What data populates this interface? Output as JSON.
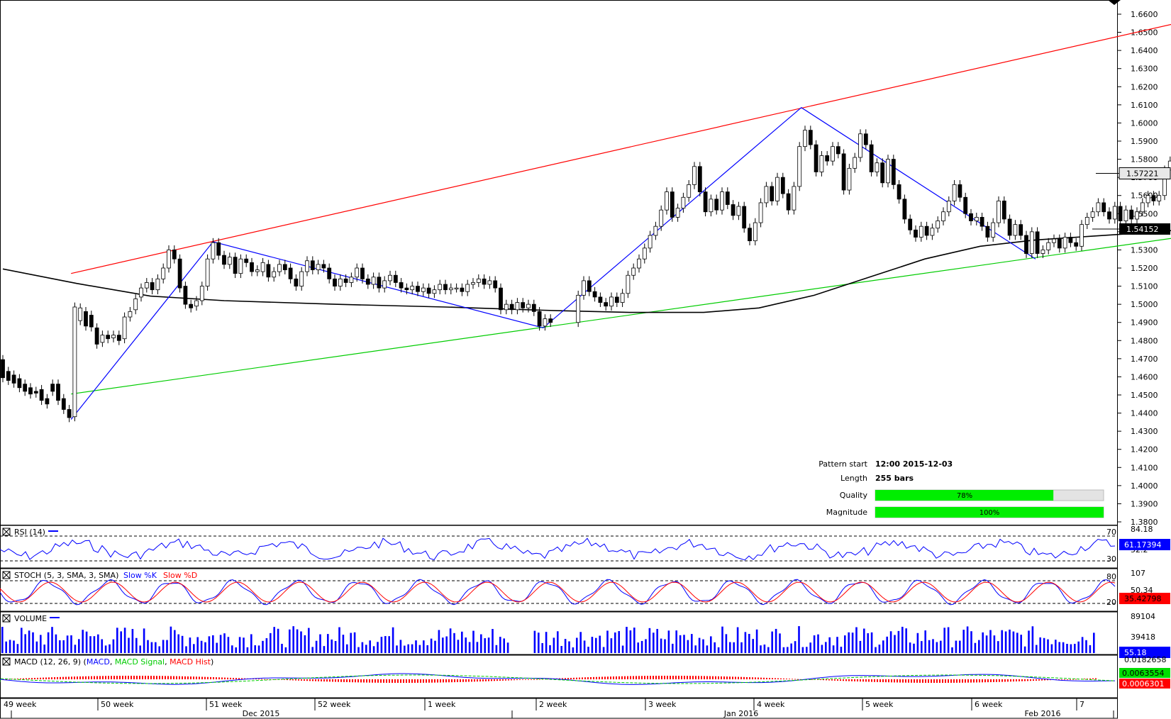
{
  "chart_data": {
    "type": "candlestick",
    "price_axis": {
      "ticks": [
        "1.6600",
        "1.6500",
        "1.6400",
        "1.6300",
        "1.6200",
        "1.6100",
        "1.6000",
        "1.5900",
        "1.5800",
        "1.5700",
        "1.5600",
        "1.5500",
        "1.5400",
        "1.5300",
        "1.5200",
        "1.5100",
        "1.5000",
        "1.4900",
        "1.4800",
        "1.4700",
        "1.4600",
        "1.4500",
        "1.4400",
        "1.4300",
        "1.4200",
        "1.4100",
        "1.4000",
        "1.3900",
        "1.3800"
      ],
      "ylim": [
        1.378,
        1.668
      ],
      "last_price_label": "1.57221",
      "ma_label": "1.54152"
    },
    "week_labels": [
      "49 week",
      "50 week",
      "51 week",
      "52 week",
      "1 week",
      "2 week",
      "3 week",
      "4 week",
      "5 week",
      "6 week",
      "7"
    ],
    "month_labels": [
      "Dec 2015",
      "Jan 2016",
      "Feb 2016"
    ],
    "moving_average": [
      [
        0,
        1.5195
      ],
      [
        40,
        1.5115
      ],
      [
        80,
        1.5045
      ],
      [
        120,
        1.502
      ],
      [
        180,
        1.5
      ],
      [
        240,
        1.4985
      ],
      [
        300,
        1.4965
      ],
      [
        340,
        1.4955
      ],
      [
        380,
        1.4955
      ],
      [
        410,
        1.498
      ],
      [
        440,
        1.505
      ],
      [
        470,
        1.515
      ],
      [
        500,
        1.525
      ],
      [
        530,
        1.532
      ],
      [
        560,
        1.5355
      ],
      [
        590,
        1.5375
      ],
      [
        620,
        1.5395
      ],
      [
        650,
        1.542
      ]
    ],
    "pattern_lines": {
      "resistance": [
        [
          37,
          1.517
        ],
        [
          645,
          1.657
        ]
      ],
      "support": [
        [
          37,
          1.4505
        ],
        [
          645,
          1.538
        ]
      ],
      "zigzag": [
        [
          37,
          1.4365
        ],
        [
          114,
          1.5345
        ],
        [
          293,
          1.487
        ],
        [
          433,
          1.6085
        ],
        [
          560,
          1.525
        ]
      ]
    },
    "candles": [
      [
        0,
        1.4695,
        1.4595
      ],
      [
        3,
        1.463,
        1.458
      ],
      [
        6,
        1.461,
        1.4565
      ],
      [
        9,
        1.459,
        1.454
      ],
      [
        12,
        1.456,
        1.452
      ],
      [
        15,
        1.454,
        1.4505
      ],
      [
        18,
        1.452,
        1.451
      ],
      [
        21,
        1.453,
        1.447
      ],
      [
        24,
        1.448,
        1.445
      ],
      [
        27,
        1.456,
        1.452
      ],
      [
        30,
        1.456,
        1.447
      ],
      [
        33,
        1.448,
        1.442
      ],
      [
        36,
        1.442,
        1.4375
      ],
      [
        39,
        1.438,
        1.4985
      ],
      [
        42,
        1.491,
        1.498
      ],
      [
        45,
        1.496,
        1.488
      ],
      [
        48,
        1.494,
        1.4875
      ],
      [
        51,
        1.487,
        1.478
      ],
      [
        54,
        1.479,
        1.483
      ],
      [
        57,
        1.483,
        1.481
      ],
      [
        60,
        1.4815,
        1.483
      ],
      [
        63,
        1.483,
        1.48
      ],
      [
        66,
        1.481,
        1.493
      ],
      [
        69,
        1.493,
        1.496
      ],
      [
        72,
        1.497,
        1.503
      ],
      [
        75,
        1.504,
        1.509
      ],
      [
        78,
        1.509,
        1.512
      ],
      [
        81,
        1.512,
        1.508
      ],
      [
        84,
        1.508,
        1.514
      ],
      [
        87,
        1.514,
        1.52
      ],
      [
        90,
        1.52,
        1.53
      ],
      [
        93,
        1.53,
        1.525
      ],
      [
        96,
        1.525,
        1.509
      ],
      [
        99,
        1.51,
        1.5
      ],
      [
        102,
        1.5,
        1.498
      ],
      [
        105,
        1.499,
        1.502
      ],
      [
        108,
        1.502,
        1.51
      ],
      [
        111,
        1.51,
        1.525
      ],
      [
        114,
        1.525,
        1.534
      ],
      [
        117,
        1.534,
        1.527
      ],
      [
        120,
        1.527,
        1.522
      ],
      [
        123,
        1.522,
        1.526
      ],
      [
        126,
        1.526,
        1.517
      ],
      [
        129,
        1.517,
        1.525
      ],
      [
        132,
        1.525,
        1.523
      ],
      [
        135,
        1.523,
        1.518
      ],
      [
        138,
        1.518,
        1.519
      ],
      [
        141,
        1.518,
        1.523
      ],
      [
        144,
        1.522,
        1.515
      ],
      [
        147,
        1.515,
        1.518
      ],
      [
        150,
        1.518,
        1.522
      ],
      [
        153,
        1.522,
        1.519
      ],
      [
        156,
        1.52,
        1.514
      ],
      [
        159,
        1.514,
        1.51
      ],
      [
        162,
        1.51,
        1.518
      ],
      [
        165,
        1.518,
        1.524
      ],
      [
        168,
        1.524,
        1.519
      ],
      [
        171,
        1.519,
        1.522
      ],
      [
        174,
        1.522,
        1.52
      ],
      [
        177,
        1.52,
        1.514
      ],
      [
        180,
        1.514,
        1.51
      ],
      [
        183,
        1.51,
        1.514
      ],
      [
        186,
        1.514,
        1.512
      ],
      [
        189,
        1.512,
        1.515
      ],
      [
        192,
        1.515,
        1.52
      ],
      [
        195,
        1.52,
        1.514
      ],
      [
        198,
        1.514,
        1.511
      ],
      [
        201,
        1.511,
        1.515
      ],
      [
        204,
        1.515,
        1.509
      ],
      [
        207,
        1.509,
        1.513
      ],
      [
        210,
        1.513,
        1.516
      ],
      [
        213,
        1.516,
        1.512
      ],
      [
        216,
        1.512,
        1.509
      ],
      [
        219,
        1.509,
        1.508
      ],
      [
        222,
        1.508,
        1.51
      ],
      [
        225,
        1.51,
        1.507
      ],
      [
        228,
        1.507,
        1.509
      ],
      [
        231,
        1.509,
        1.506
      ],
      [
        234,
        1.506,
        1.508
      ],
      [
        237,
        1.508,
        1.511
      ],
      [
        240,
        1.511,
        1.508
      ],
      [
        243,
        1.508,
        1.509
      ],
      [
        246,
        1.509,
        1.509
      ],
      [
        249,
        1.509,
        1.507
      ],
      [
        252,
        1.507,
        1.511
      ],
      [
        255,
        1.511,
        1.512
      ],
      [
        258,
        1.512,
        1.514
      ],
      [
        261,
        1.514,
        1.511
      ],
      [
        264,
        1.511,
        1.513
      ],
      [
        267,
        1.513,
        1.509
      ],
      [
        270,
        1.509,
        1.497
      ],
      [
        273,
        1.497,
        1.5
      ],
      [
        276,
        1.5,
        1.497
      ],
      [
        279,
        1.497,
        1.501
      ],
      [
        282,
        1.501,
        1.498
      ],
      [
        285,
        1.498,
        1.5
      ],
      [
        288,
        1.5,
        1.496
      ],
      [
        291,
        1.496,
        1.488
      ],
      [
        294,
        1.488,
        1.492
      ],
      [
        297,
        1.492,
        1.49
      ],
      [
        312,
        1.49,
        1.505
      ],
      [
        315,
        1.505,
        1.513
      ],
      [
        318,
        1.513,
        1.507
      ],
      [
        321,
        1.507,
        1.504
      ],
      [
        324,
        1.504,
        1.501
      ],
      [
        327,
        1.501,
        1.499
      ],
      [
        330,
        1.499,
        1.504
      ],
      [
        333,
        1.504,
        1.501
      ],
      [
        336,
        1.501,
        1.506
      ],
      [
        339,
        1.506,
        1.516
      ],
      [
        342,
        1.516,
        1.52
      ],
      [
        345,
        1.52,
        1.525
      ],
      [
        348,
        1.525,
        1.531
      ],
      [
        351,
        1.531,
        1.538
      ],
      [
        354,
        1.538,
        1.543
      ],
      [
        357,
        1.543,
        1.552
      ],
      [
        360,
        1.552,
        1.562
      ],
      [
        363,
        1.562,
        1.548
      ],
      [
        366,
        1.548,
        1.553
      ],
      [
        369,
        1.553,
        1.559
      ],
      [
        372,
        1.559,
        1.566
      ],
      [
        375,
        1.566,
        1.576
      ],
      [
        378,
        1.576,
        1.562
      ],
      [
        381,
        1.562,
        1.551
      ],
      [
        384,
        1.551,
        1.558
      ],
      [
        387,
        1.558,
        1.552
      ],
      [
        390,
        1.552,
        1.562
      ],
      [
        393,
        1.562,
        1.555
      ],
      [
        396,
        1.555,
        1.549
      ],
      [
        399,
        1.549,
        1.554
      ],
      [
        402,
        1.554,
        1.542
      ],
      [
        405,
        1.542,
        1.535
      ],
      [
        408,
        1.535,
        1.545
      ],
      [
        411,
        1.545,
        1.556
      ],
      [
        414,
        1.556,
        1.565
      ],
      [
        417,
        1.565,
        1.557
      ],
      [
        420,
        1.557,
        1.57
      ],
      [
        423,
        1.57,
        1.561
      ],
      [
        426,
        1.561,
        1.552
      ],
      [
        429,
        1.552,
        1.565
      ],
      [
        432,
        1.565,
        1.587
      ],
      [
        435,
        1.587,
        1.596
      ],
      [
        438,
        1.596,
        1.588
      ],
      [
        441,
        1.588,
        1.573
      ],
      [
        444,
        1.573,
        1.582
      ],
      [
        447,
        1.582,
        1.579
      ],
      [
        450,
        1.579,
        1.587
      ],
      [
        453,
        1.587,
        1.583
      ],
      [
        456,
        1.583,
        1.563
      ],
      [
        459,
        1.563,
        1.575
      ],
      [
        462,
        1.575,
        1.581
      ],
      [
        465,
        1.581,
        1.594
      ],
      [
        468,
        1.594,
        1.588
      ],
      [
        471,
        1.588,
        1.573
      ],
      [
        474,
        1.573,
        1.578
      ],
      [
        477,
        1.578,
        1.567
      ],
      [
        480,
        1.567,
        1.58
      ],
      [
        483,
        1.58,
        1.566
      ],
      [
        486,
        1.566,
        1.558
      ],
      [
        489,
        1.558,
        1.547
      ],
      [
        492,
        1.547,
        1.541
      ],
      [
        495,
        1.541,
        1.537
      ],
      [
        498,
        1.537,
        1.543
      ],
      [
        501,
        1.543,
        1.538
      ],
      [
        504,
        1.538,
        1.542
      ],
      [
        507,
        1.542,
        1.546
      ],
      [
        510,
        1.546,
        1.551
      ],
      [
        513,
        1.551,
        1.557
      ],
      [
        516,
        1.557,
        1.566
      ],
      [
        519,
        1.566,
        1.559
      ],
      [
        522,
        1.559,
        1.55
      ],
      [
        525,
        1.55,
        1.546
      ],
      [
        528,
        1.546,
        1.548
      ],
      [
        531,
        1.548,
        1.543
      ],
      [
        534,
        1.543,
        1.537
      ],
      [
        537,
        1.537,
        1.545
      ],
      [
        540,
        1.545,
        1.557
      ],
      [
        543,
        1.557,
        1.547
      ],
      [
        546,
        1.547,
        1.538
      ],
      [
        549,
        1.538,
        1.544
      ],
      [
        552,
        1.544,
        1.538
      ],
      [
        555,
        1.538,
        1.528
      ],
      [
        558,
        1.528,
        1.54
      ],
      [
        561,
        1.54,
        1.528
      ],
      [
        564,
        1.528,
        1.53
      ],
      [
        567,
        1.53,
        1.534
      ],
      [
        570,
        1.534,
        1.536
      ],
      [
        573,
        1.536,
        1.531
      ],
      [
        576,
        1.531,
        1.537
      ],
      [
        579,
        1.537,
        1.534
      ],
      [
        582,
        1.534,
        1.532
      ],
      [
        585,
        1.532,
        1.544
      ],
      [
        588,
        1.544,
        1.548
      ],
      [
        591,
        1.548,
        1.551
      ],
      [
        594,
        1.551,
        1.556
      ],
      [
        597,
        1.556,
        1.551
      ],
      [
        600,
        1.551,
        1.547
      ],
      [
        603,
        1.547,
        1.554
      ],
      [
        606,
        1.554,
        1.546
      ],
      [
        609,
        1.546,
        1.552
      ],
      [
        612,
        1.552,
        1.547
      ],
      [
        615,
        1.547,
        1.551
      ],
      [
        618,
        1.551,
        1.556
      ],
      [
        621,
        1.556,
        1.56
      ],
      [
        624,
        1.56,
        1.557
      ],
      [
        627,
        1.557,
        1.56
      ],
      [
        630,
        1.56,
        1.574
      ],
      [
        633,
        1.574,
        1.579
      ],
      [
        636,
        1.579,
        1.575
      ],
      [
        639,
        1.575,
        1.57
      ],
      [
        642,
        1.57,
        1.568
      ]
    ],
    "pattern_info": {
      "start_label": "Pattern start",
      "start_value": "12:00 2015-12-03",
      "length_label": "Length",
      "length_value": "255 bars",
      "quality_label": "Quality",
      "quality_value": "78%",
      "quality_fraction": 0.78,
      "magnitude_label": "Magnitude",
      "magnitude_value": "100%",
      "magnitude_fraction": 1.0
    },
    "indicators": {
      "rsi": {
        "label": "RSI (14)",
        "top": "84.18",
        "upper": "70",
        "mid": "52.2",
        "lower": "30",
        "value": "61.17394"
      },
      "stoch": {
        "label": "STOCH (5, 3, SMA, 3, SMA)",
        "k_label": "Slow %K",
        "d_label": "Slow %D",
        "top": "107",
        "upper": "80",
        "mid": "50.34",
        "lower": "20",
        "value": "35.42798"
      },
      "volume": {
        "label": "VOLUME",
        "top": "89104",
        "mid": "39418",
        "value": "55.18"
      },
      "macd": {
        "label": "MACD (12, 26, 9)",
        "macd_label": "MACD",
        "signal_label": "MACD Signal",
        "hist_label": "MACD Hist",
        "top": "0.0182658",
        "value_signal": "0.0063554",
        "value_hist": "0.0006301"
      }
    },
    "colors": {
      "resistance": "#ff0000",
      "support": "#00cc00",
      "zigzag": "#0000ff",
      "ma": "#000000",
      "green_bar": "#00ee00",
      "stoch_k": "#0000ff",
      "stoch_d": "#ff0000",
      "signal_box": "#00dd00",
      "hist_box": "#ff0000",
      "rsi_box": "#0000ff"
    }
  }
}
